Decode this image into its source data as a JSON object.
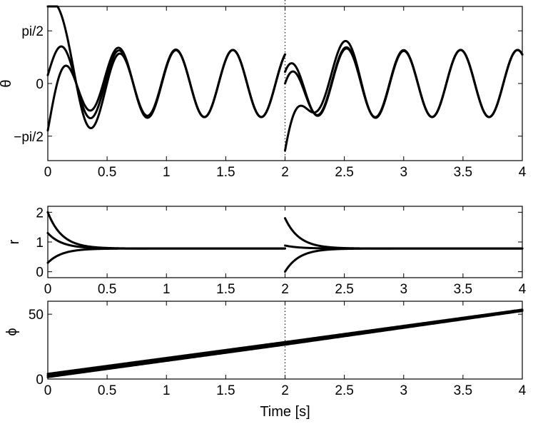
{
  "chart_data": [
    {
      "type": "line",
      "title": "",
      "xlabel": "",
      "ylabel": "θ",
      "xlim": [
        0,
        4
      ],
      "ylim": [
        -2.3,
        2.3
      ],
      "xticks": [
        0,
        0.5,
        1,
        1.5,
        2,
        2.5,
        3,
        3.5,
        4
      ],
      "xtick_labels": [
        "0",
        "0.5",
        "1",
        "1.5",
        "2",
        "2.5",
        "3",
        "3.5",
        "4"
      ],
      "yticks": [
        -1.5708,
        0,
        1.5708
      ],
      "ytick_labels": [
        "−pi/2",
        "0",
        "pi/2"
      ],
      "vline_x": 2,
      "series": [
        {
          "y0": 2.4,
          "reset_y": -2.0
        },
        {
          "y0": 0.25,
          "reset_y": 0.0
        },
        {
          "y0": -1.4,
          "reset_y": 0.35
        }
      ]
    },
    {
      "type": "line",
      "title": "",
      "xlabel": "",
      "ylabel": "r",
      "xlim": [
        0,
        4
      ],
      "ylim": [
        -0.2,
        2.2
      ],
      "xticks": [
        0,
        0.5,
        1,
        1.5,
        2,
        2.5,
        3,
        3.5,
        4
      ],
      "xtick_labels": [
        "0",
        "0.5",
        "1",
        "1.5",
        "2",
        "2.5",
        "3",
        "3.5",
        "4"
      ],
      "yticks": [
        0,
        1,
        2
      ],
      "ytick_labels": [
        "0",
        "1",
        "2"
      ],
      "steady_value": 0.78,
      "series": [
        {
          "y0": 2.0,
          "reset_y": 1.8
        },
        {
          "y0": 1.3,
          "reset_y": 0.88
        },
        {
          "y0": 0.3,
          "reset_y": 0.0
        }
      ]
    },
    {
      "type": "line",
      "title": "",
      "xlabel": "Time [s]",
      "ylabel": "ϕ",
      "xlim": [
        0,
        4
      ],
      "ylim": [
        0,
        60
      ],
      "xticks": [
        0,
        0.5,
        1,
        1.5,
        2,
        2.5,
        3,
        3.5,
        4
      ],
      "xtick_labels": [
        "0",
        "0.5",
        "1",
        "1.5",
        "2",
        "2.5",
        "3",
        "3.5",
        "4"
      ],
      "yticks": [
        0,
        50
      ],
      "ytick_labels": [
        "0",
        "50"
      ],
      "vline_x": 2,
      "series": [
        {
          "y0": 1.5,
          "y_at_2": 26.5,
          "y_end": 52.5
        },
        {
          "y0": 2.7,
          "y_at_2": 27.5,
          "y_end": 53.0
        },
        {
          "y0": 4.0,
          "y_at_2": 28.5,
          "y_end": 53.5
        }
      ]
    }
  ]
}
